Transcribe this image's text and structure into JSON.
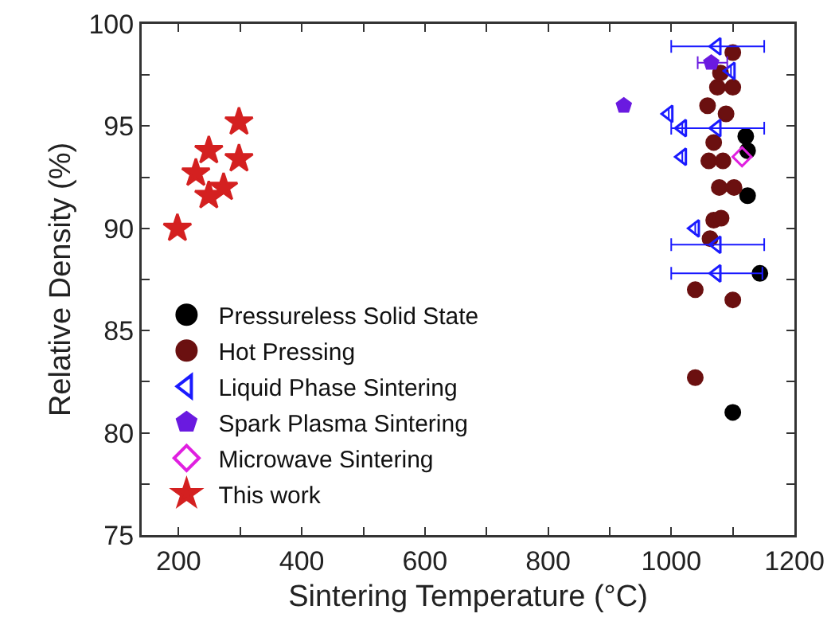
{
  "chart_data": {
    "type": "scatter",
    "xlabel": "Sintering Temperature (°C)",
    "ylabel": "Relative Density (%)",
    "xlim": [
      140,
      1200
    ],
    "ylim": [
      75,
      100
    ],
    "xticks": [
      200,
      {
        "value": 300,
        "label": null
      },
      400,
      {
        "value": 500,
        "label": null
      },
      600,
      {
        "value": 700,
        "label": null
      },
      800,
      {
        "value": 900,
        "label": null
      },
      1000,
      {
        "value": 1100,
        "label": null
      },
      1200
    ],
    "yticks": [
      75,
      {
        "value": 77.5,
        "label": null
      },
      80,
      {
        "value": 82.5,
        "label": null
      },
      85,
      {
        "value": 87.5,
        "label": null
      },
      90,
      {
        "value": 92.5,
        "label": null
      },
      95,
      {
        "value": 97.5,
        "label": null
      },
      100
    ],
    "grid": false,
    "legend": "bottom left",
    "series": [
      {
        "name": "Pressureless Solid State",
        "color": "#000000",
        "marker": "circle",
        "x": [
          1121,
          1124,
          1124,
          1144,
          1100
        ],
        "values": [
          94.5,
          93.8,
          91.6,
          87.8,
          81.0
        ]
      },
      {
        "name": "Hot Pressing",
        "color": "#6b1010",
        "marker": "circle",
        "x": [
          1100,
          1080,
          1075,
          1100,
          1059,
          1089,
          1069,
          1061,
          1084,
          1078,
          1102,
          1069,
          1081,
          1063,
          1039,
          1100,
          1039
        ],
        "values": [
          98.6,
          97.6,
          96.9,
          96.9,
          96.0,
          95.6,
          94.2,
          93.3,
          93.3,
          92.0,
          92.0,
          90.4,
          90.5,
          89.5,
          87.0,
          86.5,
          82.7
        ]
      },
      {
        "name": "Liquid Phase Sintering",
        "color": "#1a1aff",
        "marker": "triangle",
        "x": [
          1074,
          1097,
          996,
          1018,
          1074,
          1018,
          1039,
          1074,
          1074
        ],
        "values": [
          98.9,
          97.7,
          95.6,
          94.9,
          94.9,
          93.5,
          90.0,
          89.2,
          87.8
        ],
        "xerrors": [
          [
            1000,
            1151
          ],
          null,
          null,
          null,
          [
            1000,
            1151
          ],
          null,
          null,
          [
            1000,
            1151
          ],
          [
            1000,
            1148
          ]
        ]
      },
      {
        "name": "Spark Plasma Sintering",
        "color": "#6a1ae0",
        "x": [
          923,
          1065
        ],
        "values": [
          96.0,
          98.1
        ],
        "xerrors": [
          null,
          [
            1043,
            1091
          ]
        ]
      },
      {
        "name": "Microwave Sintering",
        "color": "#e020e0",
        "marker": "diamond",
        "x": [
          1115
        ],
        "values": [
          93.5
        ]
      },
      {
        "name": "This work",
        "color": "#d42020",
        "marker": "star",
        "x": [
          298,
          249,
          298,
          228,
          273,
          249,
          198
        ],
        "values": [
          95.2,
          93.8,
          93.4,
          92.7,
          92.0,
          91.6,
          90.0
        ]
      }
    ]
  }
}
